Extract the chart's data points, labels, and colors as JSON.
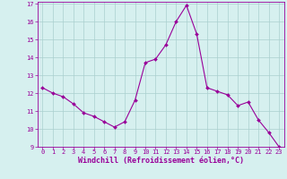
{
  "x": [
    0,
    1,
    2,
    3,
    4,
    5,
    6,
    7,
    8,
    9,
    10,
    11,
    12,
    13,
    14,
    15,
    16,
    17,
    18,
    19,
    20,
    21,
    22,
    23
  ],
  "y": [
    12.3,
    12.0,
    11.8,
    11.4,
    10.9,
    10.7,
    10.4,
    10.1,
    10.4,
    11.6,
    13.7,
    13.9,
    14.7,
    16.0,
    16.9,
    15.3,
    12.3,
    12.1,
    11.9,
    11.3,
    11.5,
    10.5,
    9.8,
    9.0
  ],
  "line_color": "#990099",
  "marker": "D",
  "marker_size": 2.0,
  "bg_color": "#d6f0ef",
  "grid_color": "#aacfcf",
  "xlabel": "Windchill (Refroidissement éolien,°C)",
  "xlabel_color": "#990099",
  "ylim": [
    9,
    17
  ],
  "xlim": [
    -0.5,
    23.5
  ],
  "yticks": [
    9,
    10,
    11,
    12,
    13,
    14,
    15,
    16,
    17
  ],
  "xticks": [
    0,
    1,
    2,
    3,
    4,
    5,
    6,
    7,
    8,
    9,
    10,
    11,
    12,
    13,
    14,
    15,
    16,
    17,
    18,
    19,
    20,
    21,
    22,
    23
  ],
  "tick_color": "#990099",
  "tick_fontsize": 5.0,
  "xlabel_fontsize": 6.0,
  "spine_color": "#990099",
  "line_width": 0.8
}
